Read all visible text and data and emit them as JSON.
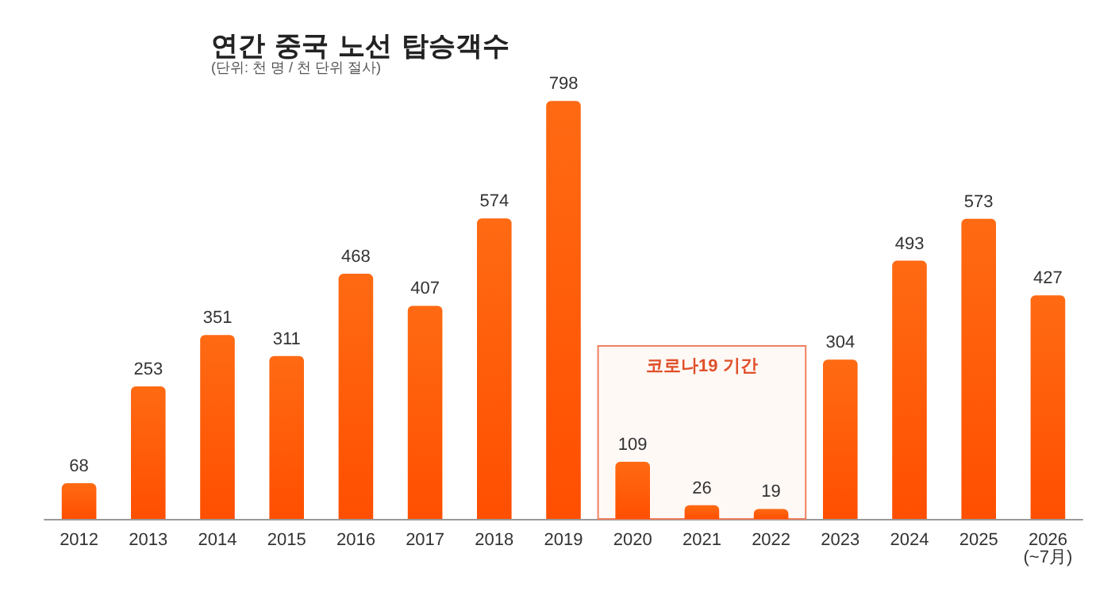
{
  "chart_data": {
    "type": "bar",
    "title": "연간 중국 노선 탑승객수",
    "subtitle": "(단위: 천 명 / 천 단위 절사)",
    "categories": [
      "2012",
      "2013",
      "2014",
      "2015",
      "2016",
      "2017",
      "2018",
      "2019",
      "2020",
      "2021",
      "2022",
      "2023",
      "2024",
      "2025",
      "2026\n(~7月)"
    ],
    "values": [
      68,
      253,
      351,
      311,
      468,
      407,
      574,
      798,
      109,
      26,
      19,
      304,
      493,
      573,
      427
    ],
    "color": "#ff6a13",
    "data_labels": true,
    "bands": [
      {
        "axis": "x",
        "from": "2020",
        "to": "2022",
        "label": "코로나19 기간",
        "color": "#f08060"
      }
    ]
  }
}
